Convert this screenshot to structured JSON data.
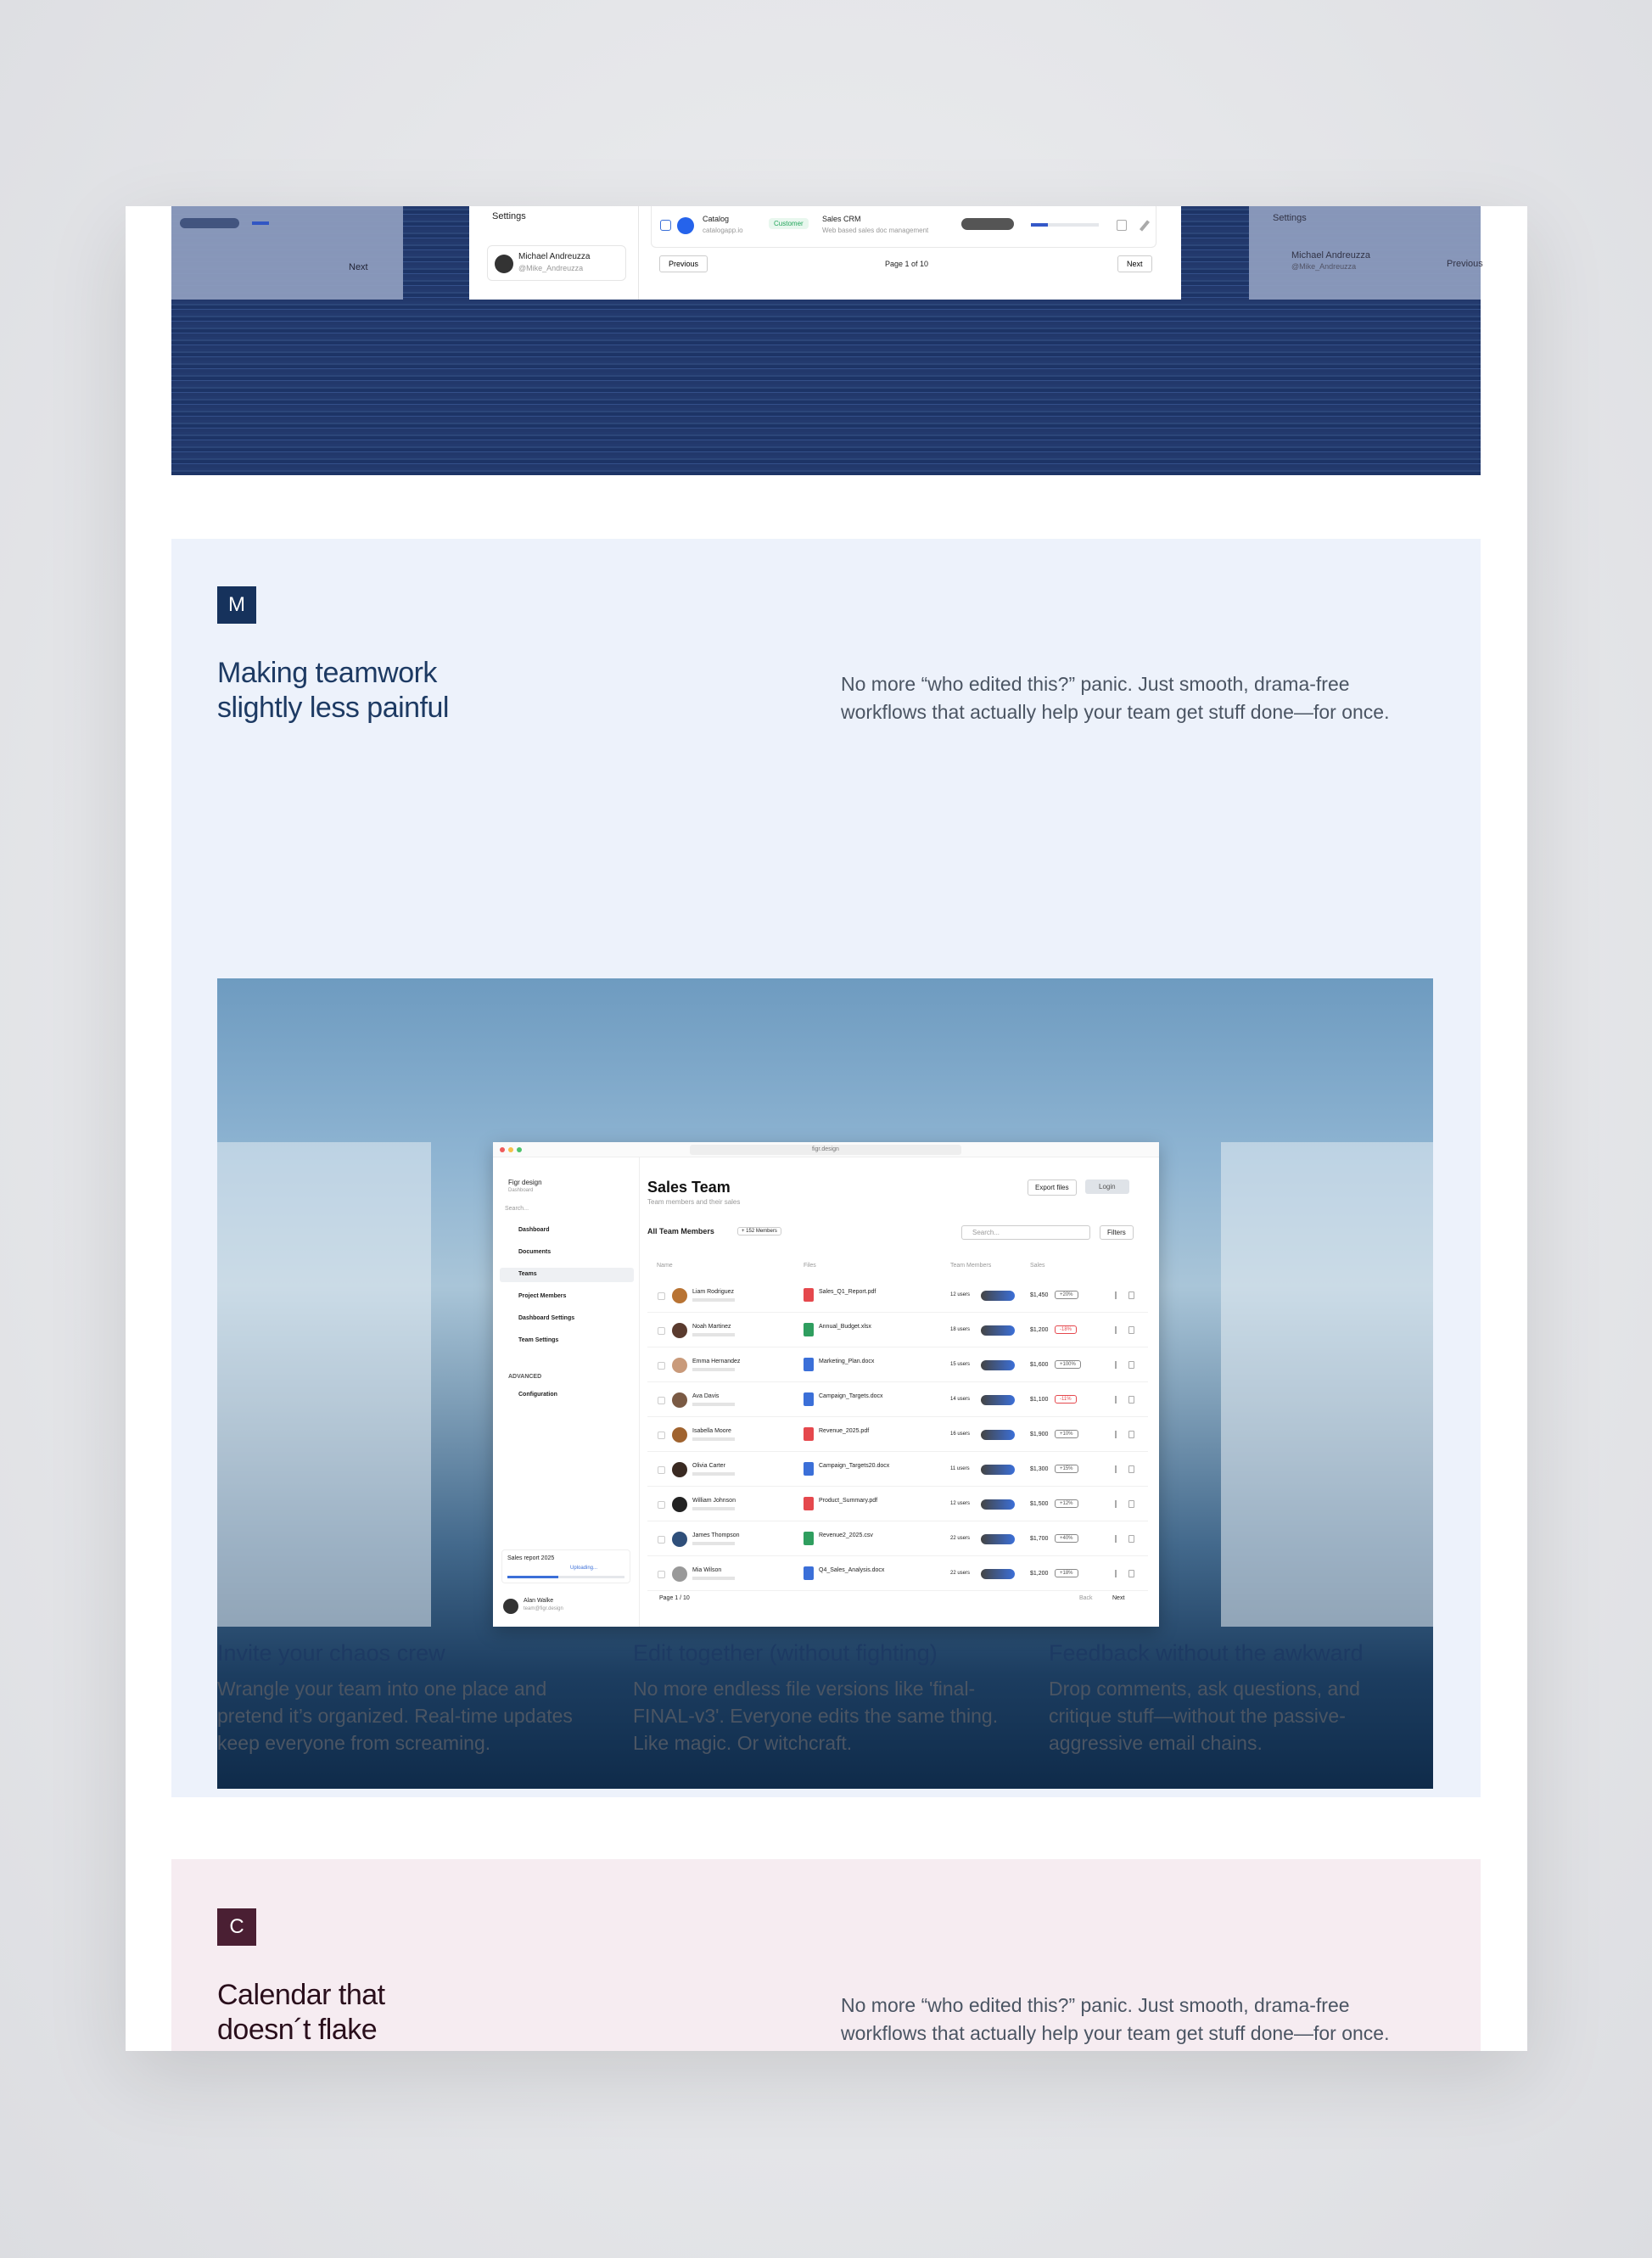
{
  "top_panel": {
    "left_next": "Next",
    "settings": "Settings",
    "user_name": "Michael Andreuzza",
    "user_handle": "@Mike_Andreuzza",
    "row": {
      "title": "Catalog",
      "url": "catalogapp.io",
      "tag": "Customer",
      "product": "Sales CRM",
      "description": "Web based sales doc management"
    },
    "previous": "Previous",
    "page": "Page 1 of 10",
    "next": "Next",
    "right_settings": "Settings",
    "right_user_name": "Michael Andreuzza",
    "right_user_handle": "@Mike_Andreuzza",
    "right_previous": "Previous"
  },
  "section_m": {
    "badge": "M",
    "title_lines": [
      "Making teamwork",
      "slightly less painful"
    ],
    "intro_lines": [
      "No more “who edited this?” panic. Just smooth, drama-free",
      "workflows that actually help your team get stuff done—for once."
    ]
  },
  "mockup": {
    "address": "figr.design",
    "brand": "Figr design",
    "brand_sub": "Dashboard",
    "search": "Search...",
    "nav": [
      "Dashboard",
      "Documents",
      "Teams",
      "Project Members",
      "Dashboard Settings",
      "Team Settings"
    ],
    "advanced": "ADVANCED",
    "configuration": "Configuration",
    "report_title": "Sales report 2025",
    "report_sub": "Uploading...",
    "user_name": "Alan Walke",
    "user_mail": "team@figr.design",
    "title": "Sales Team",
    "subtitle": "Team members and their sales",
    "export": "Export files",
    "login": "Login",
    "table_title": "All Team Members",
    "members": "+ 152 Members",
    "table_search": "Search...",
    "filters": "Filters",
    "columns": [
      "Name",
      "Files",
      "Team Members",
      "Sales"
    ],
    "rows": [
      {
        "name": "Liam Rodriguez",
        "file": "Sales_Q1_Report.pdf",
        "users": "12 users",
        "sales": "$1,450",
        "change": "+20%"
      },
      {
        "name": "Noah Martinez",
        "file": "Annual_Budget.xlsx",
        "users": "18 users",
        "sales": "$1,200",
        "change": "-18%"
      },
      {
        "name": "Emma Hernandez",
        "file": "Marketing_Plan.docx",
        "users": "15 users",
        "sales": "$1,600",
        "change": "+100%"
      },
      {
        "name": "Ava Davis",
        "file": "Campaign_Targets.docx",
        "users": "14 users",
        "sales": "$1,100",
        "change": "-11%"
      },
      {
        "name": "Isabella Moore",
        "file": "Revenue_2025.pdf",
        "users": "16 users",
        "sales": "$1,900",
        "change": "+10%"
      },
      {
        "name": "Olivia Carter",
        "file": "Campaign_Targets20.docx",
        "users": "11 users",
        "sales": "$1,300",
        "change": "+15%"
      },
      {
        "name": "William Johnson",
        "file": "Product_Summary.pdf",
        "users": "12 users",
        "sales": "$1,500",
        "change": "+12%"
      },
      {
        "name": "James Thompson",
        "file": "Revenue2_2025.csv",
        "users": "22 users",
        "sales": "$1,700",
        "change": "+40%"
      },
      {
        "name": "Mia Wilson",
        "file": "Q4_Sales_Analysis.docx",
        "users": "22 users",
        "sales": "$1,200",
        "change": "+18%"
      }
    ],
    "page": "Page 1 / 10",
    "back": "Back",
    "next": "Next"
  },
  "features": [
    {
      "title": "Invite your chaos crew",
      "lines": [
        "Wrangle your team into one place and",
        "pretend it’s organized. Real-time updates",
        "keep everyone from screaming."
      ]
    },
    {
      "title": "Edit together (without fighting)",
      "lines": [
        "No more endless file versions like 'final-",
        "FINAL-v3'. Everyone edits the same thing.",
        "Like magic. Or witchcraft."
      ]
    },
    {
      "title": "Feedback without the awkward",
      "lines": [
        "Drop comments, ask questions, and",
        "critique stuff—without the passive-",
        "aggressive email chains."
      ]
    }
  ],
  "section_c": {
    "badge": "C",
    "title_lines": [
      "Calendar that",
      "doesn´t flake"
    ],
    "intro_lines": [
      "No more “who edited this?” panic. Just smooth, drama-free",
      "workflows that actually help your team get stuff done—for once."
    ]
  }
}
